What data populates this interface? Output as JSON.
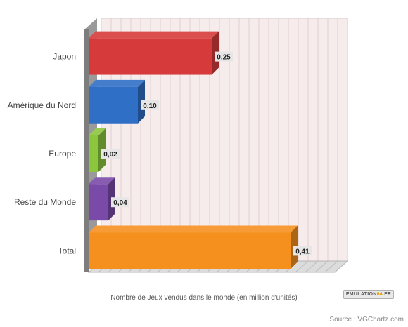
{
  "chart_data": {
    "type": "bar",
    "orientation": "horizontal",
    "categories": [
      "Japon",
      "Amérique du Nord",
      "Europe",
      "Reste du Monde",
      "Total"
    ],
    "values": [
      0.25,
      0.1,
      0.02,
      0.04,
      0.41
    ],
    "value_labels": [
      "0,25",
      "0,10",
      "0,02",
      "0,04",
      "0,41"
    ],
    "colors": [
      "#d63a3a",
      "#2f6fc6",
      "#8cc63e",
      "#7a4aa8",
      "#f5901e"
    ],
    "xlabel": "Nombre de Jeux vendus dans le monde (en million d'unités)",
    "xlim": [
      0,
      0.5
    ],
    "grid": true,
    "legend": "none",
    "style": "3d"
  },
  "watermark": {
    "main": "EMULATION",
    "accent": "64",
    "suffix": ".FR"
  },
  "source": "Source : VGChartz.com"
}
